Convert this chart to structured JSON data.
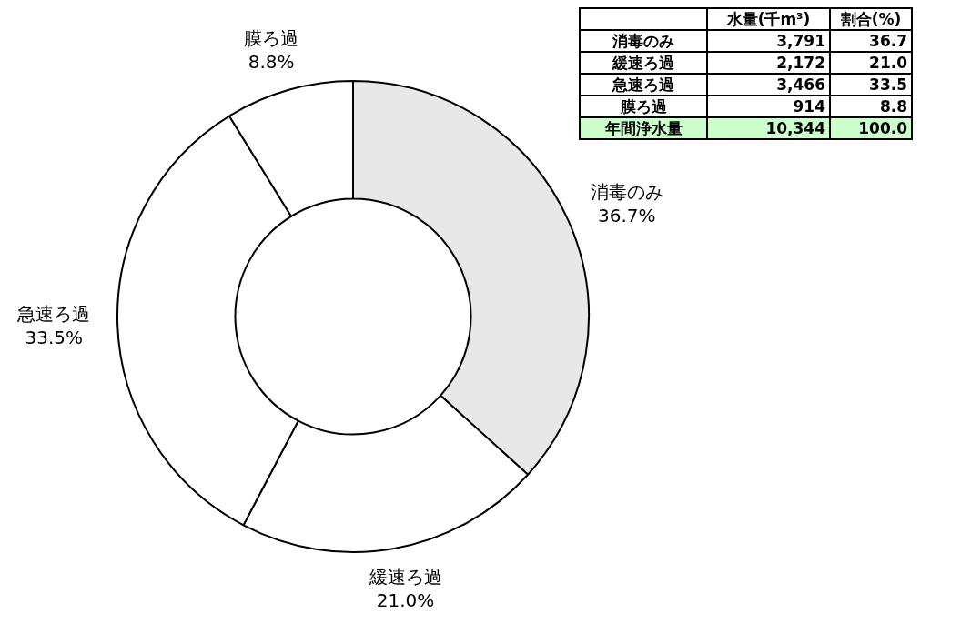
{
  "chart_data": {
    "type": "donut",
    "categories": [
      "消毒のみ",
      "緩速ろ過",
      "急速ろ過",
      "膜ろ過"
    ],
    "values": [
      36.7,
      21.0,
      33.5,
      8.8
    ],
    "value_labels": [
      "36.7%",
      "21.0%",
      "33.5%",
      "8.8%"
    ],
    "colors": [
      "#e8e8e8",
      "#ffffff",
      "#ffffff",
      "#ffffff"
    ],
    "data_labels": true,
    "annotations": [
      "水量(千m³)",
      "割合(%)",
      "3,791",
      "2,172",
      "3,466",
      "914",
      "36.7",
      "21.0",
      "33.5",
      "8.8",
      "年間浄水量",
      "10,344",
      "100.0"
    ],
    "legend": false
  }
}
